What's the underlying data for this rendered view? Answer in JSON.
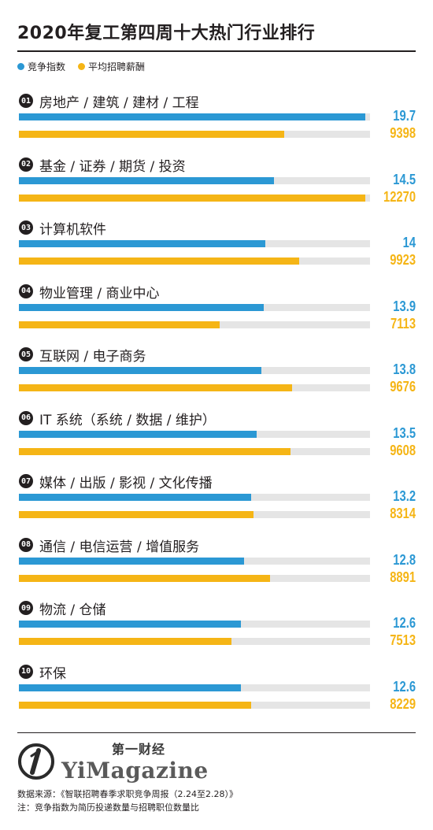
{
  "title": "2020年复工第四周十大热门行业排行",
  "legend": [
    {
      "label": "竞争指数",
      "color": "#2b98d4"
    },
    {
      "label": "平均招聘薪酬",
      "color": "#f5b516"
    }
  ],
  "chart_data": {
    "type": "bar",
    "orientation": "horizontal",
    "title": "2020年复工第四周十大热门行业排行",
    "categories": [
      "房地产 / 建筑 / 建材 / 工程",
      "基金 / 证券 / 期货 / 投资",
      "计算机软件",
      "物业管理 / 商业中心",
      "互联网 / 电子商务",
      "IT 系统（系统 / 数据 / 维护）",
      "媒体 / 出版 / 影视 / 文化传播",
      "通信 / 电信运营 / 增值服务",
      "物流 / 仓储",
      "环保"
    ],
    "ranks": [
      "01",
      "02",
      "03",
      "04",
      "05",
      "06",
      "07",
      "08",
      "09",
      "10"
    ],
    "series": [
      {
        "name": "竞争指数",
        "color": "#2b98d4",
        "values": [
          19.7,
          14.5,
          14,
          13.9,
          13.8,
          13.5,
          13.2,
          12.8,
          12.6,
          12.6
        ],
        "max": 19.7
      },
      {
        "name": "平均招聘薪酬",
        "color": "#f5b516",
        "values": [
          9398,
          12270,
          9923,
          7113,
          9676,
          9608,
          8314,
          8891,
          7513,
          8229
        ],
        "max": 12270
      }
    ],
    "legend_position": "top-left",
    "grid": false
  },
  "footer": {
    "logo_cn": "第一财经",
    "logo_en": "YiMagazine",
    "source": "数据来源：《智联招聘春季求职竞争周报（2.24至2.28）》",
    "note": "注：竞争指数为简历投递数量与招聘职位数量比"
  }
}
